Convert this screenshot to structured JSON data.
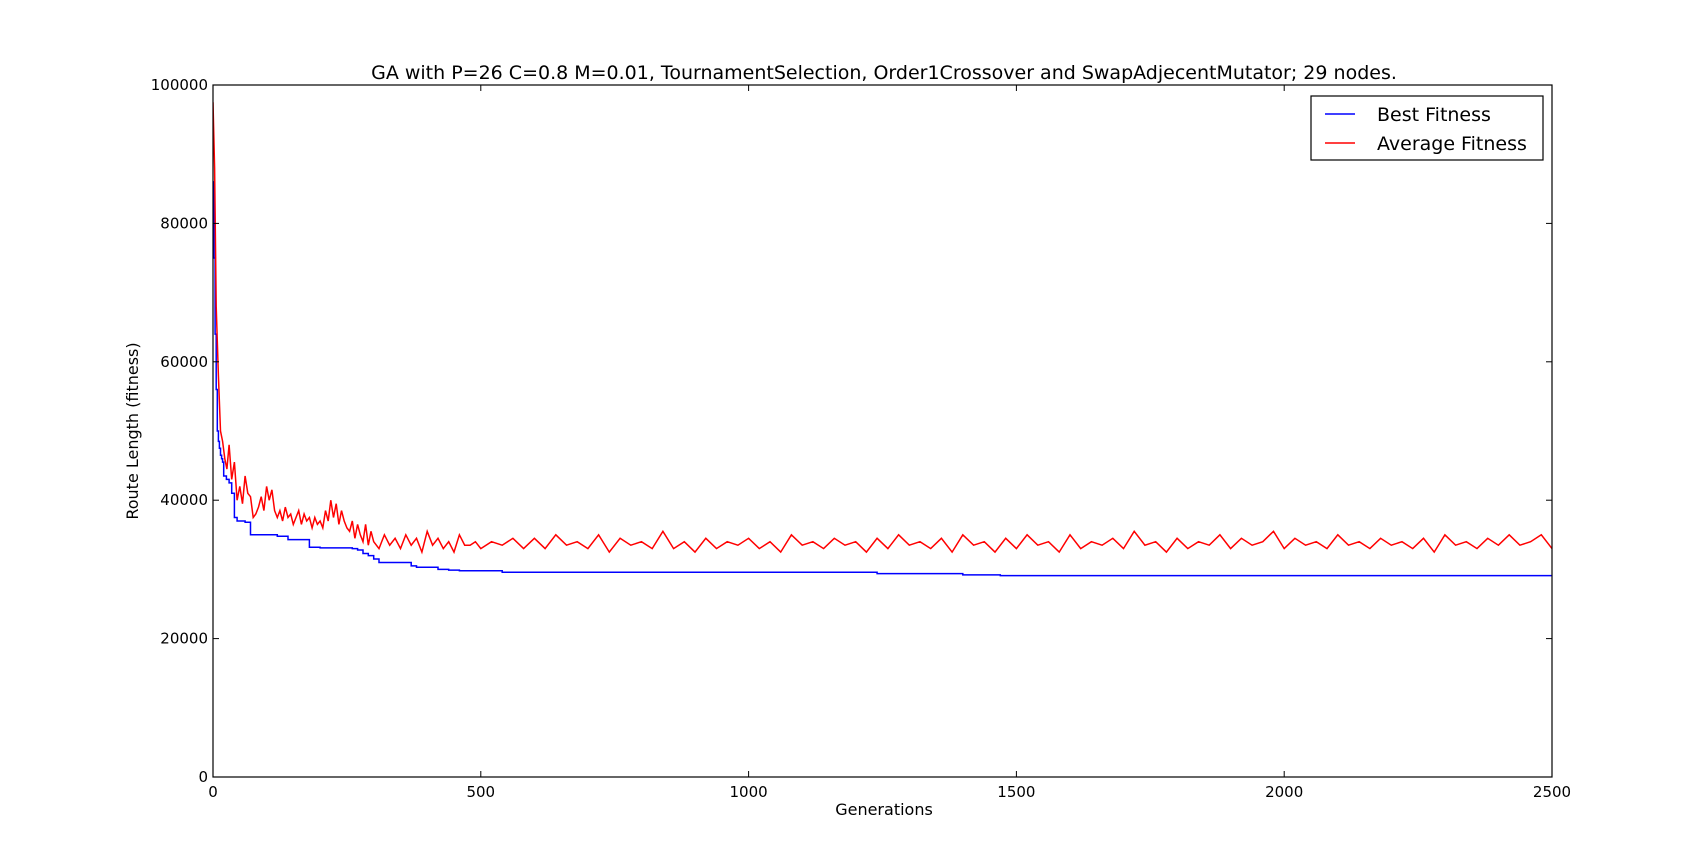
{
  "chart_data": {
    "type": "line",
    "title": "GA with P=26 C=0.8 M=0.01, TournamentSelection, Order1Crossover and SwapAdjecentMutator; 29 nodes.",
    "xlabel": "Generations",
    "ylabel": "Route Length (fitness)",
    "xlim": [
      0,
      2500
    ],
    "ylim": [
      0,
      100000
    ],
    "xticks": [
      0,
      500,
      1000,
      1500,
      2000,
      2500
    ],
    "xtick_labels": [
      "0",
      "500",
      "1000",
      "1500",
      "2000",
      "2500"
    ],
    "yticks": [
      0,
      20000,
      40000,
      60000,
      80000,
      100000
    ],
    "ytick_labels": [
      "0",
      "20000",
      "40000",
      "60000",
      "80000",
      "100000"
    ],
    "grid": false,
    "legend_position": "top-right",
    "series": [
      {
        "name": "Best Fitness",
        "color": "#0000ff",
        "step": true,
        "x": [
          0,
          2,
          4,
          6,
          8,
          10,
          12,
          14,
          16,
          18,
          20,
          25,
          30,
          35,
          40,
          45,
          50,
          60,
          70,
          80,
          90,
          100,
          120,
          140,
          160,
          180,
          200,
          220,
          240,
          260,
          270,
          280,
          290,
          300,
          310,
          340,
          370,
          380,
          400,
          420,
          440,
          460,
          500,
          540,
          560,
          700,
          900,
          1100,
          1240,
          1300,
          1400,
          1470,
          1600,
          1800,
          2000,
          2200,
          2400,
          2500
        ],
        "y": [
          86000,
          75000,
          64000,
          56000,
          50000,
          48500,
          47500,
          46500,
          46000,
          45500,
          43500,
          43000,
          42500,
          41000,
          37500,
          37000,
          37000,
          36800,
          35000,
          35000,
          35000,
          35000,
          34800,
          34300,
          34300,
          33200,
          33100,
          33100,
          33100,
          33000,
          32800,
          32300,
          32000,
          31500,
          31000,
          31000,
          30500,
          30300,
          30300,
          30000,
          29900,
          29800,
          29800,
          29600,
          29600,
          29600,
          29600,
          29600,
          29400,
          29400,
          29200,
          29100,
          29100,
          29100,
          29100,
          29100,
          29100,
          29100
        ]
      },
      {
        "name": "Average Fitness",
        "color": "#ff0000",
        "x": [
          0,
          3,
          6,
          10,
          14,
          18,
          22,
          26,
          30,
          35,
          40,
          45,
          50,
          55,
          60,
          65,
          70,
          75,
          80,
          85,
          90,
          95,
          100,
          105,
          110,
          115,
          120,
          125,
          130,
          135,
          140,
          145,
          150,
          155,
          160,
          165,
          170,
          175,
          180,
          185,
          190,
          195,
          200,
          205,
          210,
          215,
          220,
          225,
          230,
          235,
          240,
          245,
          250,
          255,
          260,
          265,
          270,
          275,
          280,
          285,
          290,
          295,
          300,
          310,
          320,
          330,
          340,
          350,
          360,
          370,
          380,
          390,
          400,
          410,
          420,
          430,
          440,
          450,
          460,
          470,
          480,
          490,
          500,
          520,
          540,
          560,
          580,
          600,
          620,
          640,
          660,
          680,
          700,
          720,
          740,
          760,
          780,
          800,
          820,
          840,
          860,
          880,
          900,
          920,
          940,
          960,
          980,
          1000,
          1020,
          1040,
          1060,
          1080,
          1100,
          1120,
          1140,
          1160,
          1180,
          1200,
          1220,
          1240,
          1260,
          1280,
          1300,
          1320,
          1340,
          1360,
          1380,
          1400,
          1420,
          1440,
          1460,
          1480,
          1500,
          1520,
          1540,
          1560,
          1580,
          1600,
          1620,
          1640,
          1660,
          1680,
          1700,
          1720,
          1740,
          1760,
          1780,
          1800,
          1820,
          1840,
          1860,
          1880,
          1900,
          1920,
          1940,
          1960,
          1980,
          2000,
          2020,
          2040,
          2060,
          2080,
          2100,
          2120,
          2140,
          2160,
          2180,
          2200,
          2220,
          2240,
          2260,
          2280,
          2300,
          2320,
          2340,
          2360,
          2380,
          2400,
          2420,
          2440,
          2460,
          2480,
          2500
        ],
        "y": [
          97500,
          88000,
          68000,
          58000,
          50000,
          48500,
          46000,
          44500,
          48000,
          43000,
          45500,
          40000,
          42000,
          39500,
          43500,
          41000,
          40500,
          37500,
          38000,
          39000,
          40500,
          38500,
          42000,
          40000,
          41500,
          38500,
          37500,
          38500,
          37000,
          39000,
          37500,
          38000,
          36500,
          37500,
          38500,
          36500,
          38000,
          37000,
          37500,
          36000,
          37500,
          36500,
          37000,
          36000,
          38500,
          37000,
          40000,
          37500,
          39500,
          36500,
          38500,
          37000,
          36000,
          35500,
          37000,
          34500,
          36500,
          35000,
          34000,
          36500,
          33500,
          35500,
          34000,
          33000,
          35000,
          33500,
          34500,
          33000,
          35000,
          33500,
          34500,
          32500,
          35500,
          33500,
          34500,
          33000,
          34000,
          32500,
          35000,
          33500,
          33500,
          34000,
          33000,
          34000,
          33500,
          34500,
          33000,
          34500,
          33000,
          35000,
          33500,
          34000,
          33000,
          35000,
          32500,
          34500,
          33500,
          34000,
          33000,
          35500,
          33000,
          34000,
          32500,
          34500,
          33000,
          34000,
          33500,
          34500,
          33000,
          34000,
          32500,
          35000,
          33500,
          34000,
          33000,
          34500,
          33500,
          34000,
          32500,
          34500,
          33000,
          35000,
          33500,
          34000,
          33000,
          34500,
          32500,
          35000,
          33500,
          34000,
          32500,
          34500,
          33000,
          35000,
          33500,
          34000,
          32500,
          35000,
          33000,
          34000,
          33500,
          34500,
          33000,
          35500,
          33500,
          34000,
          32500,
          34500,
          33000,
          34000,
          33500,
          35000,
          33000,
          34500,
          33500,
          34000,
          35500,
          33000,
          34500,
          33500,
          34000,
          33000,
          35000,
          33500,
          34000,
          33000,
          34500,
          33500,
          34000,
          33000,
          34500,
          32500,
          35000,
          33500,
          34000,
          33000,
          34500,
          33500,
          35000,
          33500,
          34000,
          35000,
          33000
        ]
      }
    ]
  }
}
